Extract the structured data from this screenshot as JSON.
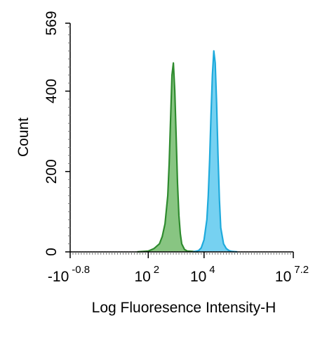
{
  "chart_data": {
    "type": "area",
    "title": "",
    "xlabel": "Log Fluoresence Intensity-H",
    "ylabel": "Count",
    "ylim": [
      0,
      569
    ],
    "xscale": "log",
    "xlim": [
      -0.8,
      7.2
    ],
    "x_ticks": [
      {
        "value": -0.8,
        "base": "-10",
        "exp": "-0.8"
      },
      {
        "value": 2,
        "base": "10",
        "exp": "2"
      },
      {
        "value": 4,
        "base": "10",
        "exp": "4"
      },
      {
        "value": 7.2,
        "base": "10",
        "exp": "7.2"
      }
    ],
    "y_ticks": [
      {
        "value": 0,
        "label": "0"
      },
      {
        "value": 200,
        "label": "200"
      },
      {
        "value": 400,
        "label": "400"
      },
      {
        "value": 569,
        "label": "569"
      }
    ],
    "grid": false,
    "legend": "none",
    "series": [
      {
        "color": "#2e8b2e",
        "fill": "#82c27b",
        "x": [
          1.6,
          2.0,
          2.2,
          2.4,
          2.5,
          2.6,
          2.7,
          2.75,
          2.8,
          2.85,
          2.9,
          2.95,
          3.0,
          3.05,
          3.1,
          3.15,
          3.2,
          3.3,
          3.4,
          3.6,
          3.8
        ],
        "y": [
          0,
          2,
          8,
          20,
          38,
          70,
          140,
          220,
          330,
          440,
          470,
          400,
          290,
          170,
          90,
          45,
          20,
          6,
          2,
          1,
          0
        ]
      },
      {
        "color": "#1eaadc",
        "fill": "#6fcff0",
        "x": [
          3.6,
          3.8,
          3.9,
          4.0,
          4.1,
          4.15,
          4.2,
          4.25,
          4.3,
          4.35,
          4.4,
          4.45,
          4.5,
          4.55,
          4.6,
          4.7,
          4.8,
          4.9,
          5.0,
          5.2
        ],
        "y": [
          0,
          3,
          10,
          30,
          80,
          140,
          230,
          340,
          440,
          500,
          470,
          370,
          240,
          130,
          60,
          20,
          8,
          3,
          1,
          0
        ]
      }
    ]
  }
}
